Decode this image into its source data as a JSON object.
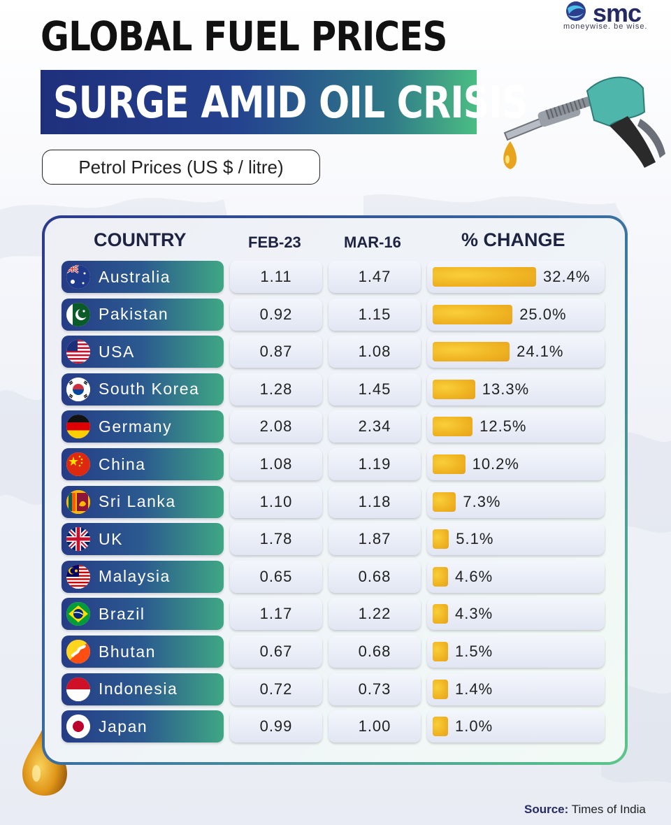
{
  "brand": {
    "name": "smc",
    "tagline": "moneywise. be wise."
  },
  "title_line1": "GLOBAL FUEL PRICES",
  "title_line2": "SURGE AMID OIL CRISIS",
  "subtitle": "Petrol Prices (US $ / litre)",
  "source_label": "Source:",
  "source_value": "Times of India",
  "chart_data": {
    "type": "table",
    "title": "GLOBAL FUEL PRICES SURGE AMID OIL CRISIS",
    "subtitle": "Petrol Prices (US $ / litre)",
    "columns": [
      "COUNTRY",
      "FEB-23",
      "MAR-16",
      "% CHANGE"
    ],
    "rows": [
      {
        "country": "Australia",
        "flag": "australia-flag",
        "feb": "1.11",
        "mar": "1.47",
        "change": 32.4,
        "change_label": "32.4%"
      },
      {
        "country": "Pakistan",
        "flag": "pakistan-flag",
        "feb": "0.92",
        "mar": "1.15",
        "change": 25.0,
        "change_label": "25.0%"
      },
      {
        "country": "USA",
        "flag": "usa-flag",
        "feb": "0.87",
        "mar": "1.08",
        "change": 24.1,
        "change_label": "24.1%"
      },
      {
        "country": "South Korea",
        "flag": "south-korea-flag",
        "feb": "1.28",
        "mar": "1.45",
        "change": 13.3,
        "change_label": "13.3%"
      },
      {
        "country": "Germany",
        "flag": "germany-flag",
        "feb": "2.08",
        "mar": "2.34",
        "change": 12.5,
        "change_label": "12.5%"
      },
      {
        "country": "China",
        "flag": "china-flag",
        "feb": "1.08",
        "mar": "1.19",
        "change": 10.2,
        "change_label": "10.2%"
      },
      {
        "country": "Sri Lanka",
        "flag": "sri-lanka-flag",
        "feb": "1.10",
        "mar": "1.18",
        "change": 7.3,
        "change_label": "7.3%"
      },
      {
        "country": "UK",
        "flag": "uk-flag",
        "feb": "1.78",
        "mar": "1.87",
        "change": 5.1,
        "change_label": "5.1%"
      },
      {
        "country": "Malaysia",
        "flag": "malaysia-flag",
        "feb": "0.65",
        "mar": "0.68",
        "change": 4.6,
        "change_label": "4.6%"
      },
      {
        "country": "Brazil",
        "flag": "brazil-flag",
        "feb": "1.17",
        "mar": "1.22",
        "change": 4.3,
        "change_label": "4.3%"
      },
      {
        "country": "Bhutan",
        "flag": "bhutan-flag",
        "feb": "0.67",
        "mar": "0.68",
        "change": 1.5,
        "change_label": "1.5%"
      },
      {
        "country": "Indonesia",
        "flag": "indonesia-flag",
        "feb": "0.72",
        "mar": "0.73",
        "change": 1.4,
        "change_label": "1.4%"
      },
      {
        "country": "Japan",
        "flag": "japan-flag",
        "feb": "0.99",
        "mar": "1.00",
        "change": 1.0,
        "change_label": "1.0%"
      }
    ],
    "bar_max": 32.4,
    "colors": {
      "bar": "#f0b523",
      "country_start": "#263c86",
      "country_end": "#3fa784"
    }
  }
}
